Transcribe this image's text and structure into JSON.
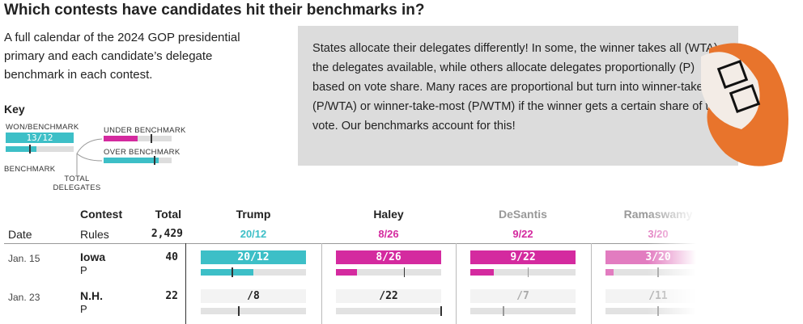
{
  "title": "Which contests have candidates hit their benchmarks in?",
  "intro": "A full calendar of the 2024 GOP presidential primary and each candidate’s delegate benchmark in each contest.",
  "note": "States allocate their delegates differently! In some, the winner takes all (WTA) the delegates available, while others allocate delegates proportionally (P) based on vote share. Many races are proportional but turn into winner-take-all (P/WTA) or winner-take-most (P/WTM) if the winner gets a certain share of the vote. Our benchmarks account for this!",
  "key": {
    "title": "Key",
    "won": "WON/BENCHMARK",
    "example": "13/12",
    "under": "UNDER BENCHMARK",
    "over": "OVER BENCHMARK",
    "benchmark": "BENCHMARK",
    "total": "TOTAL DELEGATES"
  },
  "table": {
    "headers": {
      "contest": "Contest",
      "total": "Total",
      "date": "Date",
      "rules": "Rules"
    },
    "grand_total": {
      "value": 2429,
      "label": "2,429"
    },
    "candidates": [
      {
        "name": "Trump",
        "label": "20/12",
        "won": 20,
        "benchmark": 12,
        "color": "#3dbfc7"
      },
      {
        "name": "Haley",
        "label": "8/26",
        "won": 8,
        "benchmark": 26,
        "color": "#d42a9f"
      },
      {
        "name": "DeSantis",
        "label": "9/22",
        "won": 9,
        "benchmark": 22,
        "color": "#d42a9f"
      },
      {
        "name": "Ramaswamy",
        "label": "3/20",
        "won": 3,
        "benchmark": 20,
        "color": "#e27cc0"
      }
    ],
    "rows": [
      {
        "date": "Jan. 15",
        "contest": "Iowa",
        "rule": "P",
        "total": 40,
        "results": [
          {
            "label": "20/12",
            "won": 20,
            "benchmark": 12
          },
          {
            "label": "8/26",
            "won": 8,
            "benchmark": 26
          },
          {
            "label": "9/22",
            "won": 9,
            "benchmark": 22
          },
          {
            "label": "3/20",
            "won": 3,
            "benchmark": 20
          }
        ]
      },
      {
        "date": "Jan. 23",
        "contest": "N.H.",
        "rule": "P",
        "total": 22,
        "results": [
          {
            "label": "/8",
            "benchmark": 8
          },
          {
            "label": "/22",
            "benchmark": 22
          },
          {
            "label": "/7",
            "benchmark": 7
          },
          {
            "label": "/11",
            "benchmark": 11
          }
        ]
      }
    ]
  }
}
